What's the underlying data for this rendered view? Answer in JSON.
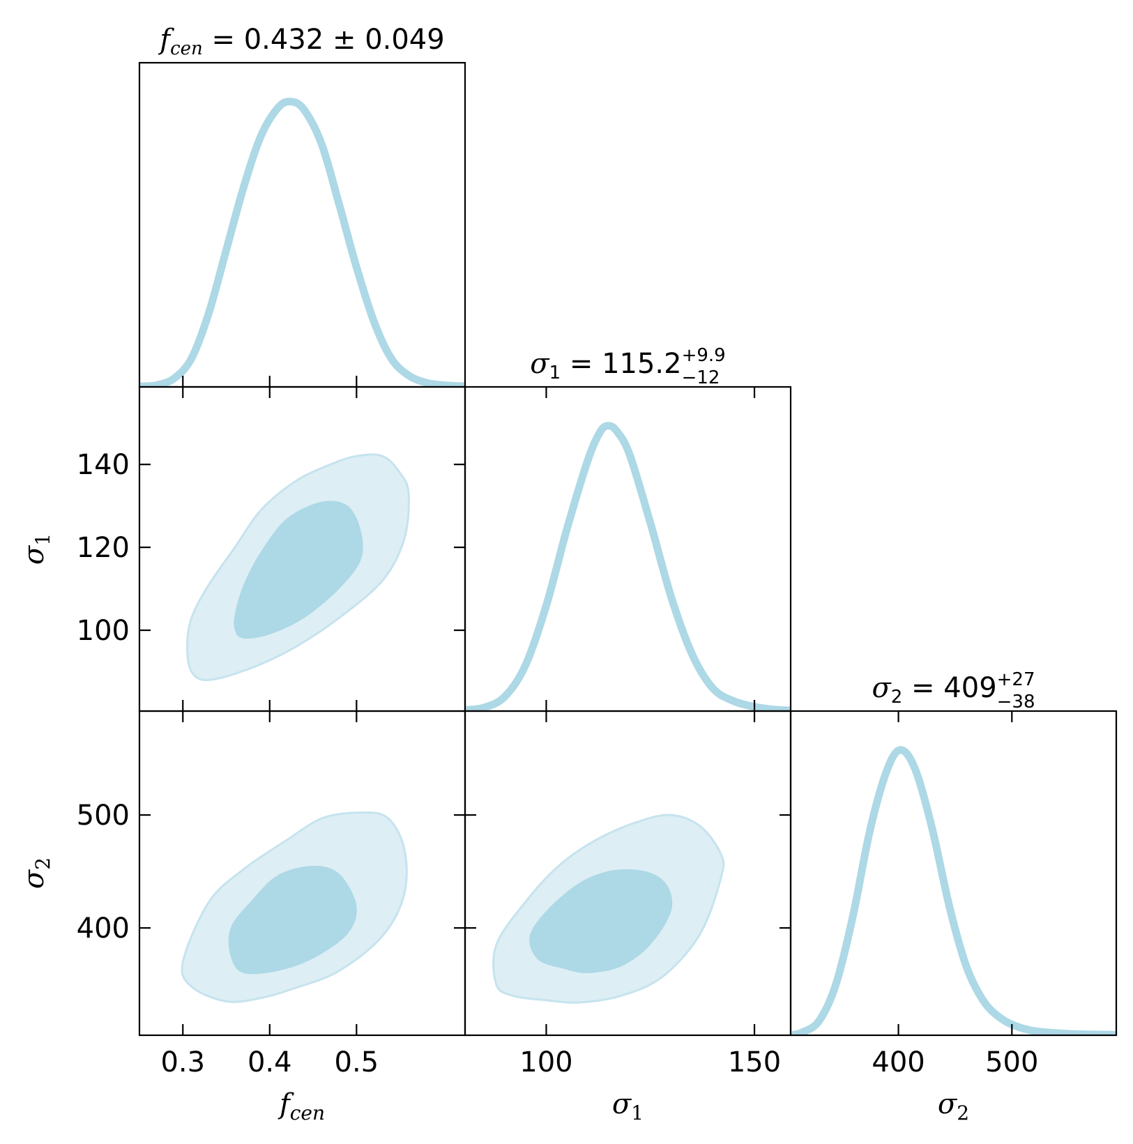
{
  "chart_data": {
    "type": "corner",
    "color": "#add8e6",
    "outer_contour_fill": "#ddeef5",
    "inner_contour_fill": "#add8e6",
    "contour_edge": "#c6e3ee",
    "parameters": [
      {
        "key": "fcen",
        "symbol": "f",
        "subscript": "cen",
        "title_value": "0.432",
        "title_error": "± 0.049",
        "err_plus": "",
        "err_minus": "",
        "median": 0.432,
        "sigma_plus": 0.049,
        "sigma_minus": 0.049,
        "range": [
          0.25,
          0.625
        ],
        "ticks": [
          0.3,
          0.4,
          0.5
        ],
        "tick_labels": [
          "0.3",
          "0.4",
          "0.5"
        ]
      },
      {
        "key": "sigma1",
        "symbol": "σ",
        "subscript": "1",
        "title_value": "115.2",
        "title_error": "",
        "err_plus": "+9.9",
        "err_minus": "−12",
        "median": 115.2,
        "sigma_plus": 9.9,
        "sigma_minus": 12,
        "range": [
          80.5,
          158.7
        ],
        "ticks": [
          100,
          120,
          140,
          150
        ],
        "tick_labels": [
          "100",
          "120",
          "140",
          "150"
        ]
      },
      {
        "key": "sigma2",
        "symbol": "σ",
        "subscript": "2",
        "title_value": "409",
        "title_error": "",
        "err_plus": "+27",
        "err_minus": "−38",
        "median": 409,
        "sigma_plus": 27,
        "sigma_minus": 38,
        "range": [
          305,
          592
        ],
        "ticks": [
          400,
          500
        ],
        "tick_labels": [
          "400",
          "500"
        ]
      }
    ],
    "x_tick_values": {
      "fcen": [
        0.3,
        0.4,
        0.5
      ],
      "sigma1": [
        100,
        150
      ],
      "sigma2": [
        400,
        500
      ]
    },
    "y_tick_values": {
      "sigma1": [
        100,
        120,
        140
      ],
      "sigma2": [
        400,
        500
      ]
    },
    "marginals": {
      "fcen": [
        [
          0.25,
          0.002
        ],
        [
          0.27,
          0.006
        ],
        [
          0.29,
          0.03
        ],
        [
          0.31,
          0.1
        ],
        [
          0.33,
          0.26
        ],
        [
          0.35,
          0.48
        ],
        [
          0.37,
          0.7
        ],
        [
          0.39,
          0.88
        ],
        [
          0.41,
          0.98
        ],
        [
          0.425,
          1.0
        ],
        [
          0.44,
          0.97
        ],
        [
          0.46,
          0.85
        ],
        [
          0.48,
          0.64
        ],
        [
          0.5,
          0.42
        ],
        [
          0.52,
          0.23
        ],
        [
          0.54,
          0.1
        ],
        [
          0.56,
          0.04
        ],
        [
          0.58,
          0.015
        ],
        [
          0.6,
          0.006
        ],
        [
          0.625,
          0.002
        ]
      ],
      "sigma1": [
        [
          80.5,
          0.004
        ],
        [
          85,
          0.012
        ],
        [
          90,
          0.05
        ],
        [
          95,
          0.16
        ],
        [
          100,
          0.37
        ],
        [
          105,
          0.64
        ],
        [
          110,
          0.88
        ],
        [
          113,
          0.98
        ],
        [
          115,
          1.0
        ],
        [
          117,
          0.98
        ],
        [
          120,
          0.9
        ],
        [
          125,
          0.66
        ],
        [
          130,
          0.4
        ],
        [
          135,
          0.2
        ],
        [
          140,
          0.08
        ],
        [
          145,
          0.035
        ],
        [
          150,
          0.015
        ],
        [
          155,
          0.005
        ],
        [
          158.7,
          0.002
        ]
      ],
      "sigma2": [
        [
          305,
          0.0
        ],
        [
          315,
          0.01
        ],
        [
          330,
          0.05
        ],
        [
          345,
          0.18
        ],
        [
          360,
          0.42
        ],
        [
          375,
          0.72
        ],
        [
          390,
          0.93
        ],
        [
          402,
          1.0
        ],
        [
          415,
          0.93
        ],
        [
          430,
          0.72
        ],
        [
          445,
          0.45
        ],
        [
          460,
          0.24
        ],
        [
          475,
          0.12
        ],
        [
          490,
          0.06
        ],
        [
          505,
          0.03
        ],
        [
          520,
          0.015
        ],
        [
          545,
          0.006
        ],
        [
          570,
          0.003
        ],
        [
          592,
          0.002
        ]
      ]
    },
    "contours": {
      "sigma1_vs_fcen": {
        "outer": [
          [
            0.33,
            88
          ],
          [
            0.38,
            91
          ],
          [
            0.43,
            96
          ],
          [
            0.48,
            103
          ],
          [
            0.53,
            112
          ],
          [
            0.555,
            122
          ],
          [
            0.56,
            133
          ],
          [
            0.55,
            138
          ],
          [
            0.53,
            142
          ],
          [
            0.5,
            142
          ],
          [
            0.47,
            140
          ],
          [
            0.43,
            136
          ],
          [
            0.39,
            129
          ],
          [
            0.36,
            120
          ],
          [
            0.33,
            111
          ],
          [
            0.31,
            103
          ],
          [
            0.305,
            96
          ],
          [
            0.31,
            90
          ]
        ],
        "inner": [
          [
            0.37,
            98
          ],
          [
            0.4,
            99
          ],
          [
            0.44,
            103
          ],
          [
            0.48,
            110
          ],
          [
            0.505,
            117
          ],
          [
            0.505,
            124
          ],
          [
            0.49,
            130
          ],
          [
            0.46,
            131
          ],
          [
            0.42,
            127
          ],
          [
            0.39,
            119
          ],
          [
            0.37,
            111
          ],
          [
            0.36,
            104
          ],
          [
            0.36,
            100
          ]
        ]
      },
      "sigma2_vs_fcen": {
        "outer": [
          [
            0.35,
            335
          ],
          [
            0.39,
            338
          ],
          [
            0.43,
            347
          ],
          [
            0.48,
            362
          ],
          [
            0.53,
            393
          ],
          [
            0.555,
            430
          ],
          [
            0.555,
            470
          ],
          [
            0.535,
            498
          ],
          [
            0.5,
            502
          ],
          [
            0.46,
            497
          ],
          [
            0.42,
            478
          ],
          [
            0.37,
            452
          ],
          [
            0.33,
            423
          ],
          [
            0.3,
            370
          ],
          [
            0.31,
            348
          ]
        ],
        "inner": [
          [
            0.37,
            360
          ],
          [
            0.41,
            362
          ],
          [
            0.45,
            373
          ],
          [
            0.49,
            395
          ],
          [
            0.5,
            420
          ],
          [
            0.48,
            448
          ],
          [
            0.45,
            455
          ],
          [
            0.41,
            447
          ],
          [
            0.38,
            425
          ],
          [
            0.355,
            400
          ],
          [
            0.355,
            375
          ]
        ]
      },
      "sigma2_vs_sigma1": {
        "outer": [
          [
            100,
            336
          ],
          [
            108,
            334
          ],
          [
            118,
            340
          ],
          [
            128,
            357
          ],
          [
            137,
            395
          ],
          [
            142,
            445
          ],
          [
            142,
            465
          ],
          [
            137,
            490
          ],
          [
            130,
            500
          ],
          [
            122,
            494
          ],
          [
            112,
            478
          ],
          [
            103,
            455
          ],
          [
            95,
            423
          ],
          [
            88,
            385
          ],
          [
            88,
            350
          ],
          [
            92,
            340
          ]
        ],
        "inner": [
          [
            104,
            364
          ],
          [
            110,
            360
          ],
          [
            118,
            366
          ],
          [
            125,
            385
          ],
          [
            130,
            415
          ],
          [
            129,
            438
          ],
          [
            124,
            450
          ],
          [
            116,
            451
          ],
          [
            108,
            440
          ],
          [
            100,
            415
          ],
          [
            96,
            392
          ],
          [
            98,
            372
          ]
        ]
      }
    }
  }
}
